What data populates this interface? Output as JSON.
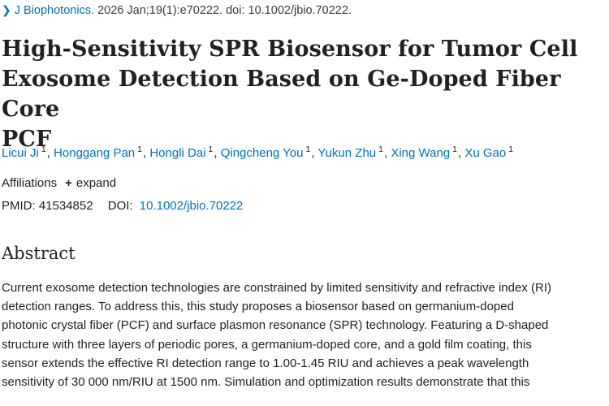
{
  "citation": {
    "journal": "J Biophotonics.",
    "details": "2026 Jan;19(1):e70222. doi: 10.1002/jbio.70222."
  },
  "article": {
    "title_lines": [
      "High-Sensitivity SPR Biosensor for Tumor Cell",
      "Exosome Detection Based on Ge-Doped Fiber Core",
      "PCF"
    ]
  },
  "authors": [
    {
      "name": "Licui Ji",
      "aff": "1"
    },
    {
      "name": "Honggang Pan",
      "aff": "1"
    },
    {
      "name": "Hongli Dai",
      "aff": "1"
    },
    {
      "name": "Qingcheng You",
      "aff": "1"
    },
    {
      "name": "Yukun Zhu",
      "aff": "1"
    },
    {
      "name": "Xing Wang",
      "aff": "1"
    },
    {
      "name": "Xu Gao",
      "aff": "1"
    }
  ],
  "affiliations": {
    "label": "Affiliations",
    "expand_label": "expand"
  },
  "identifiers": {
    "pmid_label": "PMID: 41534852",
    "doi_label": "DOI:",
    "doi_value": "10.1002/jbio.70222"
  },
  "abstract": {
    "heading": "Abstract",
    "lines": [
      "Current exosome detection technologies are constrained by limited sensitivity and refractive index (RI)",
      "detection ranges. To address this, this study proposes a biosensor based on germanium-doped",
      "photonic crystal fiber (PCF) and surface plasmon resonance (SPR) technology. Featuring a D-shaped",
      "structure with three layers of periodic pores, a germanium-doped core, and a gold film coating, this",
      "sensor extends the effective RI detection range to 1.00-1.45 RIU and achieves a peak wavelength",
      "sensitivity of 30 000 nm/RIU at 1500 nm. Simulation and optimization results demonstrate that this"
    ]
  },
  "colors": {
    "link": "#0071bc",
    "text": "#212121"
  }
}
